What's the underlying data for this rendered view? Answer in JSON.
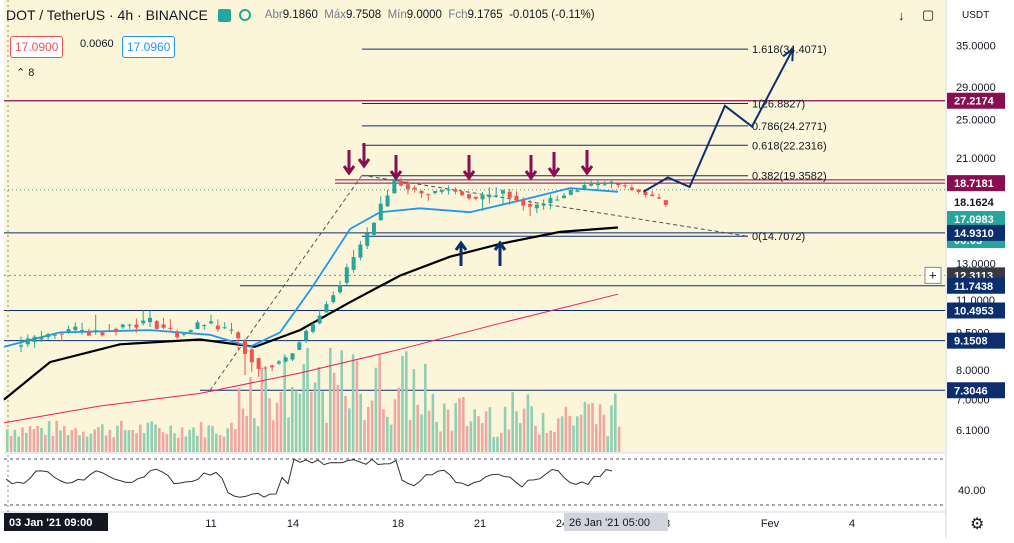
{
  "header": {
    "symbol": "DOT / TetherUS",
    "interval": "4h",
    "exchange": "BINANCE",
    "ohlc": {
      "open_label": "Abr",
      "open": "9.1860",
      "high_label": "Máx",
      "high": "9.7508",
      "low_label": "Mín",
      "low": "9.0000",
      "close_label": "Fch",
      "close": "9.1765",
      "change": "-0.0105 (-0.11%)"
    },
    "sell_price": "17.0900",
    "spread": "0.0060",
    "buy_price": "17.0960",
    "indicators_count": "8",
    "currency": "USDT"
  },
  "colors": {
    "candle_up": "#26a69a",
    "candle_down": "#ef5350",
    "ema_fast": "#2196f3",
    "ma_slow": "#000000",
    "ma_long": "#e91e63",
    "hline": "#0d2e6e",
    "resistance": "#880e4f",
    "arrow_down": "#880e4f",
    "arrow_up": "#0d2e6e",
    "projection": "#0d2e6e",
    "chart_bg": "#fbf6d9",
    "osc_line": "#333333",
    "vol_up": "#8fcfb3",
    "vol_down": "#f0a6a4"
  },
  "chart_data": {
    "type": "candlestick",
    "title": "DOT / TetherUS 4h BINANCE",
    "ylabel": "USDT",
    "yscale": "log",
    "ylim": [
      6.1,
      40
    ],
    "y_ticks": [
      "35.0000",
      "29.0000",
      "25.0000",
      "21.0000",
      "15",
      "13.0000",
      "11.0000",
      "9.5000",
      "8.0000",
      "7.0000",
      "6.1000"
    ],
    "x_ticks": [
      "11",
      "14",
      "18",
      "21",
      "24",
      "28",
      "Fev",
      "4"
    ],
    "x_cursor_left": "03 Jan '21  09:00",
    "x_cursor_right": "26 Jan '21  05:00",
    "candles_daily_approx": [
      {
        "d": 3,
        "o": 8.9,
        "h": 9.7,
        "l": 8.6,
        "c": 9.3
      },
      {
        "d": 4,
        "o": 9.3,
        "h": 10.2,
        "l": 9.0,
        "c": 9.6
      },
      {
        "d": 5,
        "o": 9.6,
        "h": 10.4,
        "l": 9.3,
        "c": 9.5
      },
      {
        "d": 6,
        "o": 9.5,
        "h": 10.1,
        "l": 9.2,
        "c": 9.8
      },
      {
        "d": 7,
        "o": 9.8,
        "h": 10.5,
        "l": 9.5,
        "c": 10.0
      },
      {
        "d": 8,
        "o": 10.0,
        "h": 10.4,
        "l": 9.3,
        "c": 9.4
      },
      {
        "d": 9,
        "o": 9.4,
        "h": 10.0,
        "l": 9.2,
        "c": 9.9
      },
      {
        "d": 10,
        "o": 9.9,
        "h": 10.3,
        "l": 9.3,
        "c": 9.5
      },
      {
        "d": 11,
        "o": 9.5,
        "h": 9.6,
        "l": 7.3,
        "c": 8.1
      },
      {
        "d": 12,
        "o": 8.1,
        "h": 8.6,
        "l": 7.6,
        "c": 8.4
      },
      {
        "d": 13,
        "o": 8.4,
        "h": 10.0,
        "l": 8.3,
        "c": 9.9
      },
      {
        "d": 14,
        "o": 9.9,
        "h": 12.2,
        "l": 9.8,
        "c": 11.9
      },
      {
        "d": 15,
        "o": 11.9,
        "h": 15.4,
        "l": 11.7,
        "c": 14.8
      },
      {
        "d": 16,
        "o": 14.8,
        "h": 19.5,
        "l": 14.6,
        "c": 18.9
      },
      {
        "d": 17,
        "o": 18.9,
        "h": 19.3,
        "l": 17.3,
        "c": 17.8
      },
      {
        "d": 18,
        "o": 17.8,
        "h": 18.6,
        "l": 17.2,
        "c": 18.2
      },
      {
        "d": 19,
        "o": 18.2,
        "h": 18.4,
        "l": 16.8,
        "c": 17.4
      },
      {
        "d": 20,
        "o": 17.4,
        "h": 18.7,
        "l": 15.2,
        "c": 18.0
      },
      {
        "d": 21,
        "o": 18.0,
        "h": 18.4,
        "l": 15.8,
        "c": 16.7
      },
      {
        "d": 22,
        "o": 16.7,
        "h": 17.9,
        "l": 16.2,
        "c": 17.5
      },
      {
        "d": 23,
        "o": 17.5,
        "h": 18.9,
        "l": 17.3,
        "c": 18.5
      },
      {
        "d": 24,
        "o": 18.5,
        "h": 19.2,
        "l": 18.0,
        "c": 18.7
      },
      {
        "d": 25,
        "o": 18.7,
        "h": 19.1,
        "l": 17.7,
        "c": 18.0
      },
      {
        "d": 26,
        "o": 18.0,
        "h": 18.3,
        "l": 16.9,
        "c": 17.1
      }
    ],
    "price_labels": [
      {
        "text": "27.2174",
        "value": 27.2174,
        "style": "resistance"
      },
      {
        "text": "18.7181",
        "value": 18.7181,
        "style": "resistance-line"
      },
      {
        "text": "18.1624",
        "value": 18.1624,
        "style": "plain"
      },
      {
        "text": "17.0983",
        "value": 17.0983,
        "style": "ema"
      },
      {
        "text": "06:05",
        "value": 15.8,
        "style": "timer"
      },
      {
        "text": "14.9310",
        "value": 14.931,
        "style": "hline"
      },
      {
        "text": "12.3113",
        "value": 12.3113,
        "style": "cursor"
      },
      {
        "text": "11.7438",
        "value": 11.7438,
        "style": "hline"
      },
      {
        "text": "10.4953",
        "value": 10.4953,
        "style": "hline"
      },
      {
        "text": "9.1508",
        "value": 9.1508,
        "style": "hline"
      },
      {
        "text": "7.3046",
        "value": 7.3046,
        "style": "hline"
      }
    ],
    "fib_levels": [
      {
        "label": "1.618(34.4071)",
        "value": 34.4071
      },
      {
        "label": "1(26.8827)",
        "value": 26.8827
      },
      {
        "label": "0.786(24.2771)",
        "value": 24.2771
      },
      {
        "label": "0.618(22.2316)",
        "value": 22.2316
      },
      {
        "label": "0.382(19.3582)",
        "value": 19.3582
      },
      {
        "label": "0(14.7072)",
        "value": 14.7072
      }
    ],
    "projection_path": [
      {
        "d": 26.0,
        "v": 18.0
      },
      {
        "d": 26.9,
        "v": 19.2
      },
      {
        "d": 27.7,
        "v": 18.4
      },
      {
        "d": 29.0,
        "v": 26.6
      },
      {
        "d": 30.0,
        "v": 24.2
      },
      {
        "d": 31.5,
        "v": 34.4
      }
    ],
    "oscillator": {
      "label": "40.00"
    }
  }
}
